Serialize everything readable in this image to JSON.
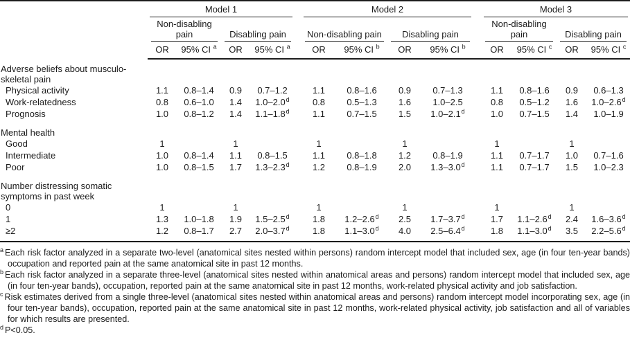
{
  "table": {
    "models": [
      {
        "label": "Model 1",
        "ci_sup": "a"
      },
      {
        "label": "Model 2",
        "ci_sup": "b"
      },
      {
        "label": "Model 3",
        "ci_sup": "c"
      }
    ],
    "pain_types": [
      "Non-disabling pain",
      "Disabling pain"
    ],
    "col_or": "OR",
    "col_ci": "95% CI",
    "rows": [
      {
        "type": "section",
        "label": [
          "Adverse beliefs about musculo-",
          "skeletal pain"
        ],
        "pad": false
      },
      {
        "type": "item",
        "label": "Physical activity",
        "cells": [
          "1.1",
          "0.8–1.4",
          "0.9",
          "0.7–1.2",
          "1.1",
          "0.8–1.6",
          "0.9",
          "0.7–1.3",
          "1.1",
          "0.8–1.6",
          "0.9",
          "0.6–1.3"
        ]
      },
      {
        "type": "item",
        "label": "Work-relatedness",
        "cells": [
          "0.8",
          "0.6–1.0",
          "1.4",
          "1.0–2.0^d",
          "0.8",
          "0.5–1.3",
          "1.6",
          "1.0–2.5",
          "0.8",
          "0.5–1.2",
          "1.6",
          "1.0–2.6^d"
        ]
      },
      {
        "type": "item",
        "label": "Prognosis",
        "cells": [
          "1.0",
          "0.8–1.2",
          "1.4",
          "1.1–1.8^d",
          "1.1",
          "0.7–1.5",
          "1.5",
          "1.0–2.1^d",
          "1.0",
          "0.7–1.5",
          "1.4",
          "1.0–1.9"
        ]
      },
      {
        "type": "section",
        "label": [
          "Mental health"
        ],
        "pad": true
      },
      {
        "type": "item",
        "label": "Good",
        "cells": [
          "1",
          "",
          "1",
          "",
          "1",
          "",
          "1",
          "",
          "1",
          "",
          "1",
          ""
        ]
      },
      {
        "type": "item",
        "label": "Intermediate",
        "cells": [
          "1.0",
          "0.8–1.4",
          "1.1",
          "0.8–1.5",
          "1.1",
          "0.8–1.8",
          "1.2",
          "0.8–1.9",
          "1.1",
          "0.7–1.7",
          "1.0",
          "0.7–1.6"
        ]
      },
      {
        "type": "item",
        "label": "Poor",
        "cells": [
          "1.0",
          "0.8–1.5",
          "1.7",
          "1.3–2.3^d",
          "1.2",
          "0.8–1.9",
          "2.0",
          "1.3–3.0^d",
          "1.1",
          "0.7–1.7",
          "1.5",
          "1.0–2.3"
        ]
      },
      {
        "type": "section",
        "label": [
          "Number distressing somatic",
          "symptoms in past week"
        ],
        "pad": true
      },
      {
        "type": "item",
        "label": "0",
        "cells": [
          "1",
          "",
          "1",
          "",
          "1",
          "",
          "1",
          "",
          "1",
          "",
          "1",
          ""
        ]
      },
      {
        "type": "item",
        "label": "1",
        "cells": [
          "1.3",
          "1.0–1.8",
          "1.9",
          "1.5–2.5^d",
          "1.8",
          "1.2–2.6^d",
          "2.5",
          "1.7–3.7^d",
          "1.7",
          "1.1–2.6^d",
          "2.4",
          "1.6–3.6^d"
        ]
      },
      {
        "type": "item",
        "label": "≥2",
        "cells": [
          "1.2",
          "0.8–1.7",
          "2.7",
          "2.0–3.7^d",
          "1.8",
          "1.1–3.0^d",
          "4.0",
          "2.5–6.4^d",
          "1.8",
          "1.1–3.0^d",
          "3.5",
          "2.2–5.6^d"
        ]
      }
    ]
  },
  "footnotes": [
    {
      "sup": "a",
      "text": "Each risk factor analyzed in a separate two-level (anatomical sites nested within persons) random intercept model that included sex, age (in four ten-year bands) occupation and reported pain at the same anatomical site in past 12 months."
    },
    {
      "sup": "b",
      "text": "Each risk factor analyzed in a separate three-level (anatomical sites nested within anatomical areas and persons) random intercept model that included sex, age (in four ten-year bands), occupation, reported pain at the same anatomical site in past 12 months, work-related physical activity and job satisfaction."
    },
    {
      "sup": "c",
      "text": "Risk estimates derived from a single three-level (anatomical sites nested within anatomical areas and persons) random intercept model incorporating sex, age (in four ten-year bands), occupation, reported pain at the same anatomical site in past 12 months, work-related physical activity, job satisfaction and all of variables for which results are presented."
    },
    {
      "sup": "d",
      "text": "P<0.05."
    }
  ],
  "colors": {
    "text": "#1c1c1c",
    "rule": "#1c1c1c",
    "background": "#ffffff"
  }
}
